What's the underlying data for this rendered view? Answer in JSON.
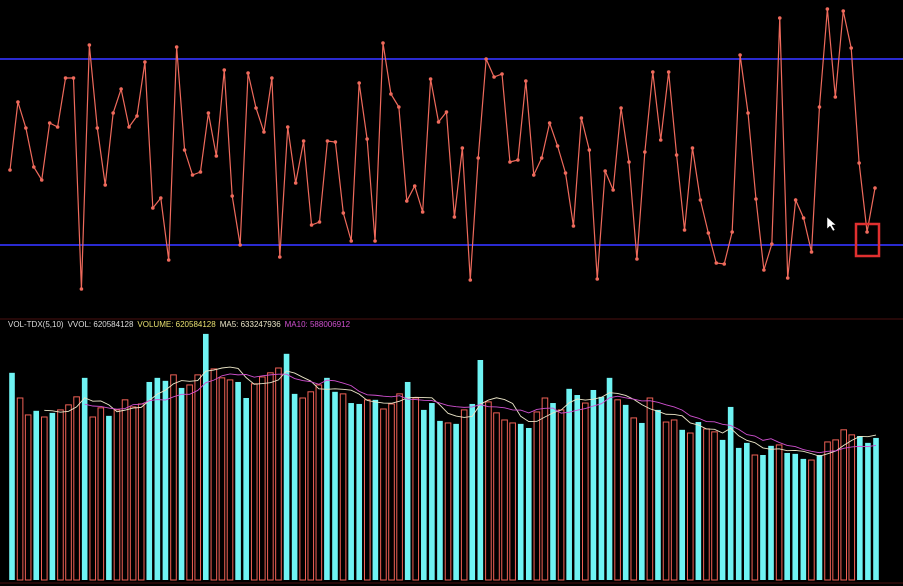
{
  "chart_data": [
    {
      "type": "line",
      "color": "#ef6a5c",
      "markers": true,
      "values": [
        130,
        198,
        172,
        133,
        120,
        177,
        173,
        222,
        222,
        11,
        255,
        172,
        115,
        187,
        211,
        173,
        184,
        238,
        92,
        102,
        40,
        253,
        150,
        125,
        128,
        187,
        144,
        230,
        104,
        55,
        227,
        192,
        168,
        222,
        43,
        173,
        117,
        159,
        75,
        78,
        159,
        158,
        87,
        59,
        217,
        161,
        59,
        257,
        206,
        193,
        99,
        114,
        88,
        221,
        178,
        188,
        83,
        152,
        20,
        142,
        241,
        223,
        226,
        138,
        140,
        219,
        125,
        142,
        177,
        154,
        127,
        74,
        182,
        150,
        21,
        129,
        110,
        192,
        138,
        41,
        148,
        228,
        160,
        228,
        145,
        70,
        152,
        100,
        67,
        37,
        36,
        68,
        245,
        187,
        101,
        30,
        56,
        282,
        22,
        100,
        82,
        48,
        193,
        291,
        203,
        289,
        252,
        137,
        68,
        112
      ],
      "ylim": [
        0,
        295
      ],
      "reference_lines": [
        241,
        55
      ],
      "reference_color": "#2a2ad0"
    },
    {
      "type": "volume",
      "indicator": "VOL-TDX(5,10)",
      "vvol": "VVOL: 620584128",
      "ylim": [
        0,
        1092000000
      ],
      "hollow_color": "#ef6156",
      "series": [
        {
          "name": "VOLUME: 620584128",
          "values": [
            905000000,
            795000000,
            721000000,
            739000000,
            712000000,
            730000000,
            743000000,
            765000000,
            800000000,
            883000000,
            712000000,
            752000000,
            717000000,
            743000000,
            787000000,
            756000000,
            769000000,
            865000000,
            883000000,
            870000000,
            896000000,
            839000000,
            852000000,
            896000000,
            1075000000,
            922000000,
            883000000,
            874000000,
            865000000,
            795000000,
            857000000,
            887000000,
            905000000,
            926000000,
            988000000,
            813000000,
            795000000,
            822000000,
            852000000,
            883000000,
            822000000,
            813000000,
            773000000,
            769000000,
            787000000,
            787000000,
            747000000,
            769000000,
            813000000,
            865000000,
            795000000,
            743000000,
            773000000,
            695000000,
            686000000,
            682000000,
            743000000,
            769000000,
            961000000,
            778000000,
            730000000,
            699000000,
            686000000,
            682000000,
            664000000,
            734000000,
            795000000,
            773000000,
            743000000,
            835000000,
            808000000,
            773000000,
            830000000,
            800000000,
            883000000,
            787000000,
            765000000,
            708000000,
            686000000,
            795000000,
            743000000,
            690000000,
            699000000,
            656000000,
            642000000,
            690000000,
            660000000,
            647000000,
            612000000,
            756000000,
            577000000,
            599000000,
            546000000,
            546000000,
            586000000,
            590000000,
            555000000,
            551000000,
            529000000,
            524000000,
            546000000,
            603000000,
            612000000,
            656000000,
            634000000,
            629000000,
            599000000,
            620584128
          ],
          "colors": [
            "#6ff3f3",
            "#ef6156",
            "#ef6156",
            "#6ff3f3",
            "#ef6156",
            "#6ff3f3",
            "#ef6156",
            "#ef6156",
            "#ef6156",
            "#6ff3f3",
            "#ef6156",
            "#ef6156",
            "#6ff3f3",
            "#ef6156",
            "#ef6156",
            "#ef6156",
            "#ef6156",
            "#6ff3f3",
            "#6ff3f3",
            "#6ff3f3",
            "#ef6156",
            "#6ff3f3",
            "#ef6156",
            "#ef6156",
            "#6ff3f3",
            "#ef6156",
            "#ef6156",
            "#ef6156",
            "#6ff3f3",
            "#6ff3f3",
            "#ef6156",
            "#ef6156",
            "#ef6156",
            "#ef6156",
            "#6ff3f3",
            "#6ff3f3",
            "#ef6156",
            "#ef6156",
            "#ef6156",
            "#6ff3f3",
            "#6ff3f3",
            "#ef6156",
            "#6ff3f3",
            "#6ff3f3",
            "#ef6156",
            "#6ff3f3",
            "#ef6156",
            "#ef6156",
            "#ef6156",
            "#6ff3f3",
            "#ef6156",
            "#6ff3f3",
            "#6ff3f3",
            "#6ff3f3",
            "#ef6156",
            "#6ff3f3",
            "#ef6156",
            "#6ff3f3",
            "#6ff3f3",
            "#ef6156",
            "#ef6156",
            "#ef6156",
            "#ef6156",
            "#6ff3f3",
            "#6ff3f3",
            "#ef6156",
            "#ef6156",
            "#6ff3f3",
            "#ef6156",
            "#6ff3f3",
            "#6ff3f3",
            "#ef6156",
            "#6ff3f3",
            "#6ff3f3",
            "#6ff3f3",
            "#ef6156",
            "#6ff3f3",
            "#ef6156",
            "#6ff3f3",
            "#ef6156",
            "#6ff3f3",
            "#ef6156",
            "#ef6156",
            "#6ff3f3",
            "#ef6156",
            "#6ff3f3",
            "#ef6156",
            "#ef6156",
            "#6ff3f3",
            "#6ff3f3",
            "#6ff3f3",
            "#6ff3f3",
            "#ef6156",
            "#6ff3f3",
            "#6ff3f3",
            "#ef6156",
            "#6ff3f3",
            "#6ff3f3",
            "#6ff3f3",
            "#ef6156",
            "#6ff3f3",
            "#ef6156",
            "#ef6156",
            "#ef6156",
            "#ef6156",
            "#6ff3f3",
            "#6ff3f3",
            "#6ff3f3"
          ]
        },
        {
          "name": "MA5: 633247936",
          "color": "#ece6c8",
          "values": [
            null,
            null,
            null,
            null,
            741000000,
            739000000,
            733000000,
            737000000,
            756000000,
            796000000,
            781000000,
            782000000,
            765000000,
            735000000,
            742000000,
            751000000,
            754000000,
            784000000,
            812000000,
            829000000,
            857000000,
            871000000,
            868000000,
            871000000,
            912000000,
            917000000,
            926000000,
            930000000,
            924000000,
            884000000,
            855000000,
            858000000,
            862000000,
            874000000,
            913000000,
            904000000,
            886000000,
            869000000,
            835000000,
            833000000,
            835000000,
            833000000,
            829000000,
            812000000,
            784000000,
            778000000,
            773000000,
            772000000,
            781000000,
            796000000,
            798000000,
            797000000,
            796000000,
            764000000,
            728000000,
            716000000,
            710000000,
            715000000,
            768000000,
            786000000,
            796000000,
            788000000,
            771000000,
            715000000,
            692000000,
            693000000,
            712000000,
            730000000,
            742000000,
            774000000,
            791000000,
            786000000,
            790000000,
            798000000,
            818000000,
            815000000,
            806000000,
            789000000,
            766000000,
            748000000,
            737000000,
            724000000,
            723000000,
            717000000,
            686000000,
            677000000,
            660000000,
            658000000,
            642000000,
            663000000,
            630000000,
            610000000,
            600000000,
            577000000,
            571000000,
            573000000,
            565000000,
            566000000,
            562000000,
            552000000,
            541000000,
            551000000,
            563000000,
            588000000,
            610000000,
            627000000,
            626000000,
            633247936
          ]
        },
        {
          "name": "MA10: 588006912",
          "color": "#d050d0",
          "values": [
            null,
            null,
            null,
            null,
            null,
            null,
            null,
            null,
            null,
            768000000,
            760000000,
            758000000,
            751000000,
            746000000,
            749000000,
            766000000,
            768000000,
            783000000,
            788000000,
            786000000,
            800000000,
            811000000,
            811000000,
            828000000,
            862000000,
            873000000,
            892000000,
            900000000,
            896000000,
            898000000,
            886000000,
            892000000,
            896000000,
            899000000,
            899000000,
            880000000,
            871000000,
            866000000,
            855000000,
            873000000,
            870000000,
            860000000,
            849000000,
            824000000,
            809000000,
            807000000,
            803000000,
            800000000,
            805000000,
            790000000,
            788000000,
            785000000,
            784000000,
            773000000,
            762000000,
            757000000,
            754000000,
            756000000,
            766000000,
            757000000,
            756000000,
            752000000,
            743000000,
            742000000,
            730000000,
            745000000,
            750000000,
            751000000,
            729000000,
            733000000,
            742000000,
            749000000,
            760000000,
            770000000,
            796000000,
            803000000,
            796000000,
            790000000,
            782000000,
            783000000,
            776000000,
            765000000,
            756000000,
            742000000,
            717000000,
            707000000,
            692000000,
            691000000,
            680000000,
            675000000,
            658000000,
            635000000,
            629000000,
            610000000,
            617000000,
            601000000,
            588000000,
            583000000,
            570000000,
            562000000,
            556000000,
            562000000,
            564000000,
            575000000,
            581000000,
            584000000,
            583000000,
            588006912
          ]
        }
      ]
    }
  ]
}
